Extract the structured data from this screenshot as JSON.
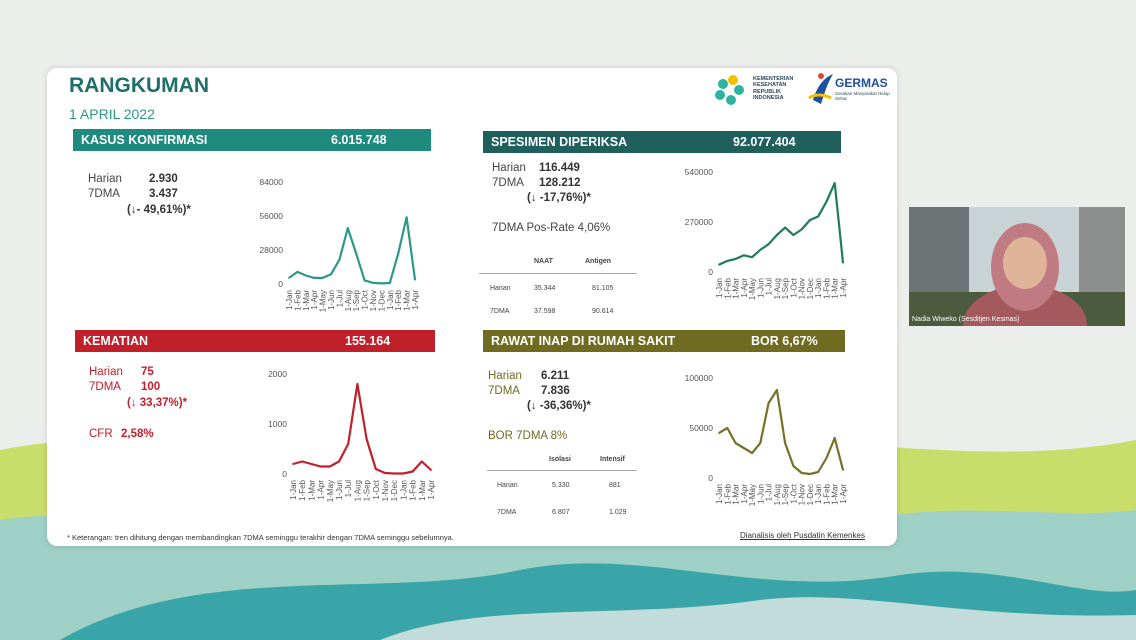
{
  "slide": {
    "title": "RANGKUMAN",
    "date": "1 APRIL 2022",
    "logo_ministry": "KEMENTERIAN KESEHATAN REPUBLIK INDONESIA",
    "logo_germas": "GERMAS",
    "logo_germas_sub": "Gerakan Masyarakat Hidup Sehat",
    "footnote": "* Keterangan: tren dihitung dengan membandingkan 7DMA seminggu terakhir dengan 7DMA seminggu sebelumnya.",
    "credit": "Dianalisis oleh Pusdatin Kemenkes"
  },
  "colors": {
    "teal": "#2a9a86",
    "red": "#c0202a",
    "olive": "#76712a",
    "dark_teal": "#1f6f6b"
  },
  "video": {
    "name_caption": "Nadia Wiweko (Sesditjen Kesmas)"
  },
  "panels": {
    "kasus": {
      "title": "KASUS KONFIRMASI",
      "total": "6.015.748",
      "harian_label": "Harian",
      "harian": "2.930",
      "dma_label": "7DMA",
      "dma": "3.437",
      "trend": "(↓- 49,61%)*"
    },
    "spesimen": {
      "title": "SPESIMEN DIPERIKSA",
      "total": "92.077.404",
      "harian_label": "Harian",
      "harian": "116.449",
      "dma_label": "7DMA",
      "dma": "128.212",
      "trend": "(↓ -17,76%)*",
      "posrate": "7DMA Pos-Rate 4,06%",
      "table": {
        "headers": [
          "",
          "NAAT",
          "Antigen"
        ],
        "rows": [
          [
            "Harian",
            "35.344",
            "81.105"
          ],
          [
            "7DMA",
            "37.598",
            "90.614"
          ]
        ]
      }
    },
    "kematian": {
      "title": "KEMATIAN",
      "total": "155.164",
      "harian_label": "Harian",
      "harian": "75",
      "dma_label": "7DMA",
      "dma": "100",
      "trend": "(↓ 33,37%)*",
      "cfr_label": "CFR",
      "cfr": "2,58%"
    },
    "rawat": {
      "title": "RAWAT INAP DI RUMAH SAKIT",
      "bor": "BOR 6,67%",
      "harian_label": "Harian",
      "harian": "6.211",
      "dma_label": "7DMA",
      "dma": "7.836",
      "trend": "(↓ -36,36%)*",
      "bor7": "BOR 7DMA 8%",
      "table": {
        "headers": [
          "",
          "Isolasi",
          "Intensif"
        ],
        "rows": [
          [
            "Harian",
            "5.330",
            "881"
          ],
          [
            "7DMA",
            "6.807",
            "1.029"
          ]
        ]
      }
    }
  },
  "chart_data": [
    {
      "type": "line",
      "id": "kasus",
      "color": "#2a9a86",
      "x": [
        "1-Jan",
        "1-Feb",
        "1-Mar",
        "1-Apr",
        "1-May",
        "1-Jun",
        "1-Jul",
        "1-Aug",
        "1-Sep",
        "1-Oct",
        "1-Nov",
        "1-Dec",
        "1-Jan",
        "1-Feb",
        "1-Mar",
        "1-Apr"
      ],
      "values": [
        5000,
        10000,
        7000,
        5000,
        5000,
        8000,
        20000,
        46000,
        25000,
        3000,
        1000,
        500,
        800,
        25000,
        55000,
        3500
      ],
      "yticks": [
        0,
        28000,
        56000,
        84000
      ],
      "ylim": [
        0,
        84000
      ],
      "ytick_labels": [
        "0",
        "28000",
        "56000",
        "84000"
      ]
    },
    {
      "type": "line",
      "id": "spesimen",
      "color": "#1f7a5e",
      "x": [
        "1-Jan",
        "1-Feb",
        "1-Mar",
        "1-Apr",
        "1-May",
        "1-Jun",
        "1-Jul",
        "1-Aug",
        "1-Sep",
        "1-Oct",
        "1-Nov",
        "1-Dec",
        "1-Jan",
        "1-Feb",
        "1-Mar",
        "1-Apr"
      ],
      "values": [
        40000,
        60000,
        70000,
        90000,
        80000,
        120000,
        150000,
        200000,
        240000,
        200000,
        230000,
        280000,
        300000,
        380000,
        480000,
        50000
      ],
      "yticks": [
        0,
        270000,
        540000
      ],
      "ylim": [
        0,
        540000
      ],
      "ytick_labels": [
        "0",
        "270000",
        "540000"
      ]
    },
    {
      "type": "line",
      "id": "kematian",
      "color": "#c0202a",
      "x": [
        "1-Jan",
        "1-Feb",
        "1-Mar",
        "1-Apr",
        "1-May",
        "1-Jun",
        "1-Jul",
        "1-Aug",
        "1-Sep",
        "1-Oct",
        "1-Nov",
        "1-Dec",
        "1-Jan",
        "1-Feb",
        "1-Mar",
        "1-Apr"
      ],
      "values": [
        200,
        250,
        200,
        150,
        150,
        250,
        600,
        1800,
        700,
        100,
        20,
        10,
        10,
        50,
        250,
        80
      ],
      "yticks": [
        0,
        1000,
        2000
      ],
      "ylim": [
        0,
        2000
      ],
      "ytick_labels": [
        "0",
        "1000",
        "2000"
      ]
    },
    {
      "type": "line",
      "id": "rawat",
      "color": "#76712a",
      "x": [
        "1-Jan",
        "1-Feb",
        "1-Mar",
        "1-Apr",
        "1-May",
        "1-Jun",
        "1-Jul",
        "1-Aug",
        "1-Sep",
        "1-Oct",
        "1-Nov",
        "1-Dec",
        "1-Jan",
        "1-Feb",
        "1-Mar",
        "1-Apr"
      ],
      "values": [
        45000,
        50000,
        35000,
        30000,
        25000,
        35000,
        75000,
        88000,
        35000,
        12000,
        5000,
        4000,
        6000,
        20000,
        40000,
        8000
      ],
      "yticks": [
        0,
        50000,
        100000
      ],
      "ylim": [
        0,
        100000
      ],
      "ytick_labels": [
        "0",
        "50000",
        "100000"
      ]
    }
  ]
}
